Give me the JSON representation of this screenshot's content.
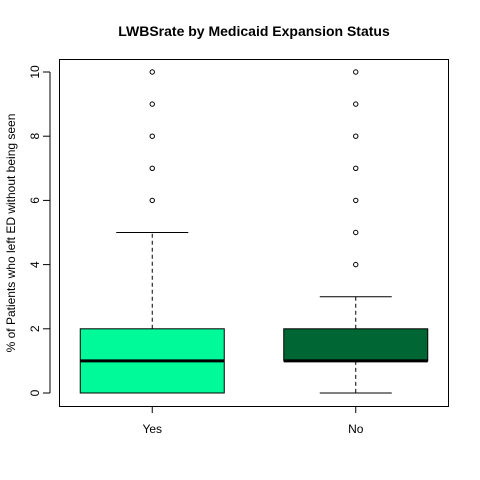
{
  "chart_data": {
    "type": "boxplot",
    "title": "LWBSrate by Medicaid Expansion Status",
    "xlabel": "",
    "ylabel": "% of Patients who left ED without being seen",
    "ylim": [
      -0.4,
      10.4
    ],
    "yticks": [
      0,
      2,
      4,
      6,
      8,
      10
    ],
    "grid": false,
    "legend": "none",
    "categories": [
      "Yes",
      "No"
    ],
    "boxes": [
      {
        "category": "Yes",
        "color": "#00FA9A",
        "whisker_low": 0,
        "q1": 0,
        "median": 1,
        "q3": 2,
        "whisker_high": 5,
        "outliers": [
          6,
          7,
          8,
          9,
          10
        ]
      },
      {
        "category": "No",
        "color": "#006633",
        "whisker_low": 0,
        "q1": 1,
        "median": 1,
        "q3": 2,
        "whisker_high": 3,
        "outliers": [
          4,
          5,
          6,
          7,
          8,
          9,
          10
        ]
      }
    ]
  }
}
